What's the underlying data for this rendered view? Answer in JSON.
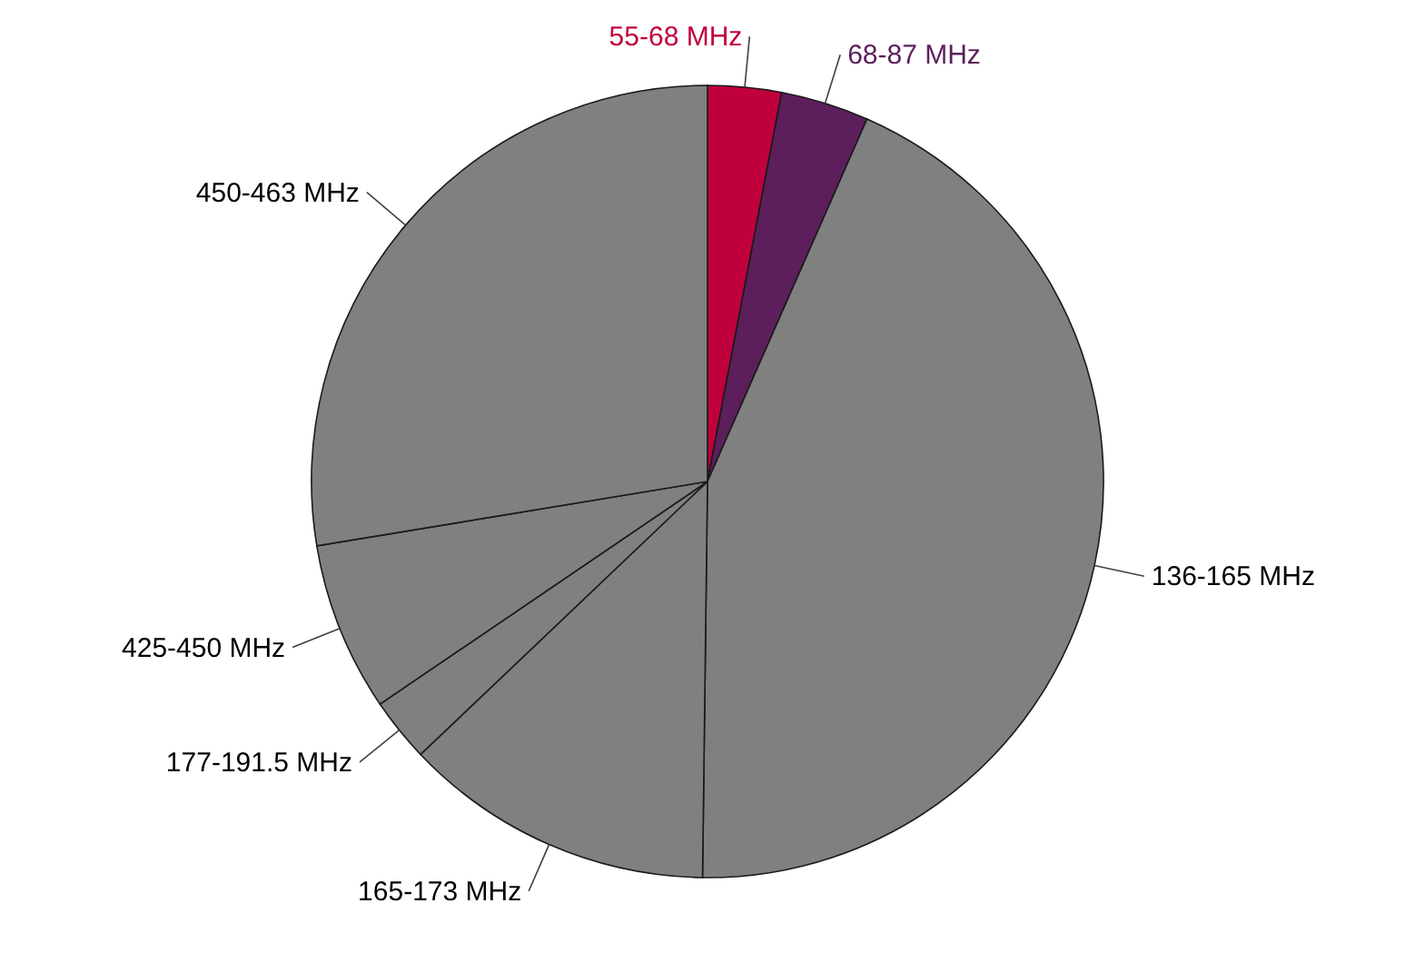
{
  "chart_data": {
    "type": "pie",
    "categories": [
      "55-68 MHz",
      "68-87 MHz",
      "136-165 MHz",
      "165-173 MHz",
      "177-191.5 MHz",
      "425-450 MHz",
      "450-463 MHz"
    ],
    "values": [
      3.0,
      3.6,
      43.6,
      12.7,
      2.6,
      6.9,
      27.6
    ],
    "colors": [
      "#c0003c",
      "#5c1f5c",
      "#808080",
      "#808080",
      "#808080",
      "#808080",
      "#808080"
    ]
  }
}
